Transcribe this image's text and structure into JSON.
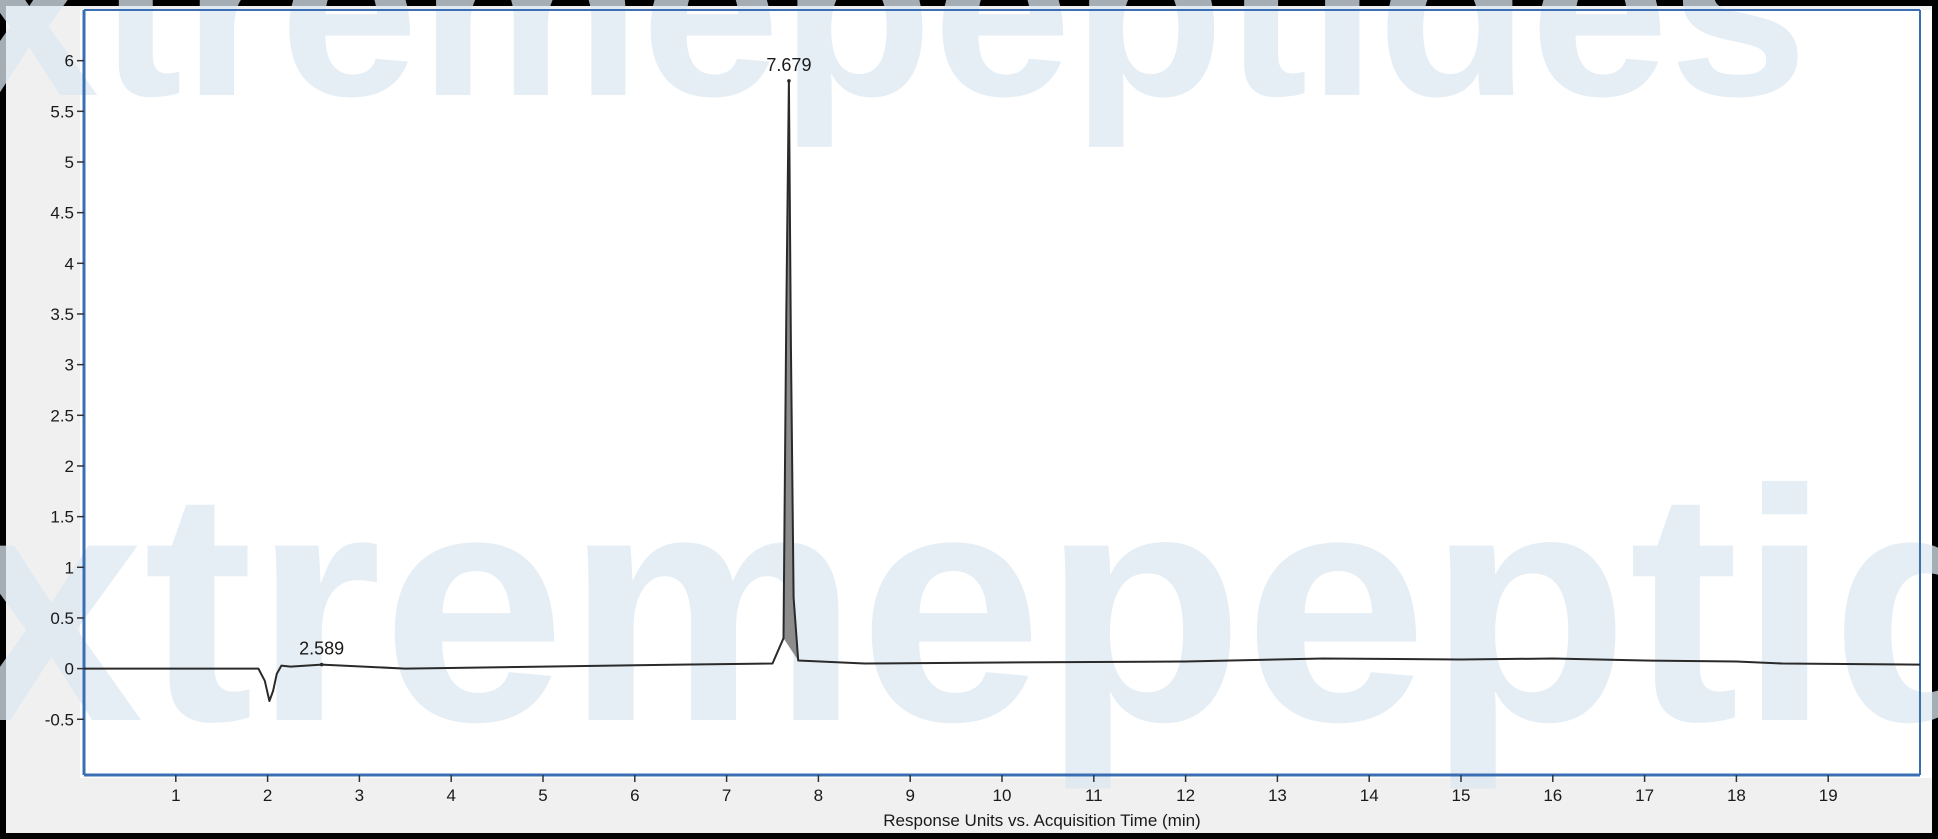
{
  "watermark": "xtremepeptides",
  "colors": {
    "plot_background": "#ffffff",
    "outer_background": "#f0f0f0",
    "axis": "#3a6fb5",
    "trace": "#2a2a2a",
    "peak_fill": "#8c8c8c",
    "watermark": "#dde9f2"
  },
  "chart_data": {
    "type": "line",
    "title": "",
    "xlabel": "Response Units vs. Acquisition Time (min)",
    "ylabel": "",
    "xlim": [
      0,
      20
    ],
    "ylim": [
      -1.05,
      6.5
    ],
    "x_ticks": [
      1,
      2,
      3,
      4,
      5,
      6,
      7,
      8,
      9,
      10,
      11,
      12,
      13,
      14,
      15,
      16,
      17,
      18,
      19
    ],
    "y_ticks": [
      -0.5,
      0,
      0.5,
      1,
      1.5,
      2,
      2.5,
      3,
      3.5,
      4,
      4.5,
      5,
      5.5,
      6
    ],
    "y_tick_labels": [
      "-0.5",
      "0",
      "0.5",
      "1",
      "1.5",
      "2",
      "2.5",
      "3",
      "3.5",
      "4",
      "4.5",
      "5",
      "5.5",
      "6"
    ],
    "grid": false,
    "series": [
      {
        "x": [
          0,
          1.9,
          1.97,
          2.02,
          2.06,
          2.1,
          2.15,
          2.25,
          2.589,
          3.5,
          5.0,
          6.5,
          7.5,
          7.62,
          7.65,
          7.679,
          7.7,
          7.73,
          7.78,
          8.5,
          10,
          12,
          13.5,
          15,
          16,
          17,
          18,
          18.5,
          20
        ],
        "y": [
          0,
          0,
          -0.12,
          -0.32,
          -0.22,
          -0.05,
          0.03,
          0.02,
          0.04,
          0.0,
          0.02,
          0.04,
          0.05,
          0.3,
          3.5,
          5.8,
          3.2,
          0.7,
          0.08,
          0.05,
          0.06,
          0.07,
          0.1,
          0.09,
          0.1,
          0.08,
          0.07,
          0.05,
          0.04
        ]
      }
    ],
    "annotations": [
      {
        "text": "7.679",
        "x": 7.679,
        "y": 5.8
      },
      {
        "text": "2.589",
        "x": 2.589,
        "y": 0.04
      }
    ]
  }
}
